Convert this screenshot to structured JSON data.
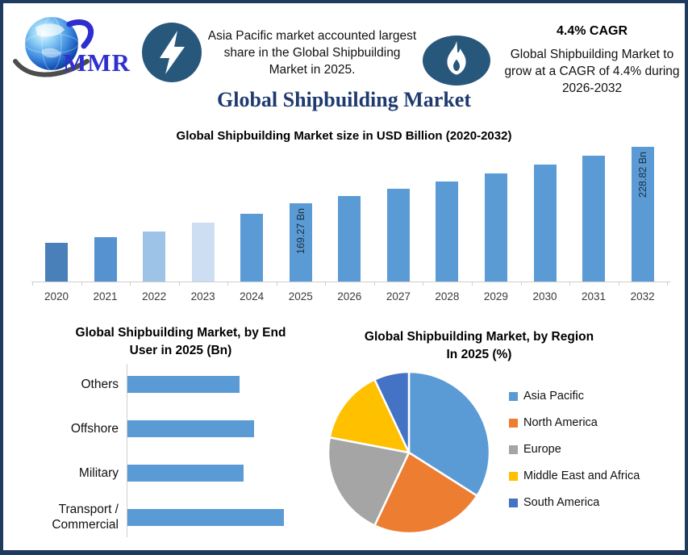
{
  "page": {
    "border_color": "#1f3a5f",
    "background": "#ffffff",
    "badge_color": "#28577c"
  },
  "header": {
    "logo_text": "MMR",
    "highlight": {
      "icon": "lightning-icon",
      "text": "Asia Pacific market accounted largest share in the Global Shipbuilding Market in 2025."
    },
    "cagr": {
      "icon": "flame-icon",
      "title": "4.4% CAGR",
      "text": "Global Shipbuilding Market to grow at a CAGR of 4.4% during 2026-2032"
    }
  },
  "main_title": "Global Shipbuilding Market",
  "chart_data": [
    {
      "type": "bar",
      "orientation": "vertical",
      "title": "Global Shipbuilding Market size in USD Billion (2020-2032)",
      "categories": [
        "2020",
        "2021",
        "2022",
        "2023",
        "2024",
        "2025",
        "2026",
        "2027",
        "2028",
        "2029",
        "2030",
        "2031",
        "2032"
      ],
      "values": [
        127.0,
        133.1,
        139.1,
        148.6,
        158.1,
        169.27,
        176.7,
        184.5,
        192.6,
        201.1,
        209.9,
        219.2,
        228.82
      ],
      "data_labels": [
        "",
        "",
        "",
        "",
        "",
        "169.27 Bn",
        "",
        "",
        "",
        "",
        "",
        "",
        "228.82 Bn"
      ],
      "bar_colors": [
        "#4a80b9",
        "#5592cf",
        "#9dc3e6",
        "#cdddf2",
        "#5b9bd5",
        "#5b9bd5",
        "#5b9bd5",
        "#5b9bd5",
        "#5b9bd5",
        "#5b9bd5",
        "#5b9bd5",
        "#5b9bd5",
        "#5b9bd5"
      ],
      "ylabel": "USD Billion",
      "ylim": [
        86,
        229
      ],
      "grid": false
    },
    {
      "type": "bar",
      "orientation": "horizontal",
      "title": "Global Shipbuilding Market, by End User in 2025 (Bn)",
      "categories": [
        "Others",
        "Offshore",
        "Military",
        "Transport / Commercial"
      ],
      "values": [
        37.1,
        41.9,
        38.4,
        51.8
      ],
      "bar_color": "#5b9bd5",
      "xlim": [
        0,
        60
      ],
      "grid": false
    },
    {
      "type": "pie",
      "title": "Global Shipbuilding Market, by Region In 2025 (%)",
      "labels": [
        "Asia Pacific",
        "North America",
        "Europe",
        "Middle East and Africa",
        "South America"
      ],
      "values": [
        34,
        23,
        21,
        15,
        7
      ],
      "colors": [
        "#5b9bd5",
        "#ed7d31",
        "#a5a5a5",
        "#ffc000",
        "#4472c4"
      ],
      "start_angle_deg": 0,
      "direction": "clockwise",
      "legend_position": "right"
    }
  ]
}
